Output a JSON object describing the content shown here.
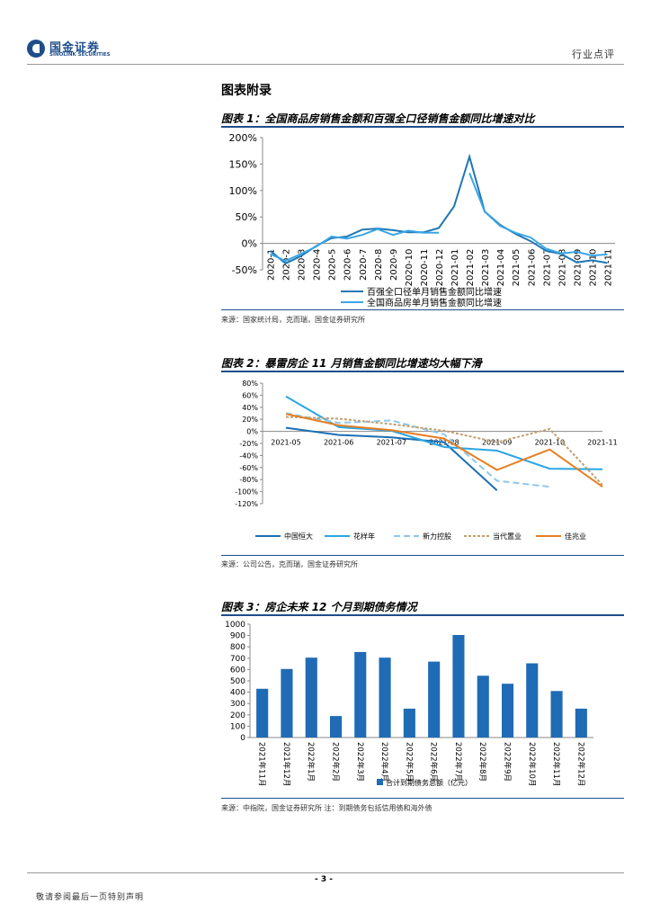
{
  "header": {
    "logo_cn": "国金证券",
    "logo_en": "SINOLINK SECURITIES",
    "category": "行业点评"
  },
  "appendix_title": "图表附录",
  "figures": [
    {
      "title": "图表 1：全国商品房销售金额和百强全口径销售金额同比增速对比",
      "source": "来源：国家统计局，克而瑞，国金证券研究所"
    },
    {
      "title": "图表 2：暴雷房企 11 月销售金额同比增速均大幅下滑",
      "source": "来源：公司公告，克而瑞，国金证券研究所"
    },
    {
      "title": "图表 3：房企未来 12 个月到期债务情况",
      "source": "来源：中指院，国金证券研究所 注：到期债务包括信用债和海外债"
    }
  ],
  "footer": {
    "page": "- 3 -",
    "note": "敬请参阅最后一页特别声明"
  },
  "chart_data": [
    {
      "type": "line",
      "title": "全国商品房销售金额和百强全口径销售金额同比增速对比",
      "categories": [
        "2020-1",
        "2020-2",
        "2020-3",
        "2020-4",
        "2020-5",
        "2020-6",
        "2020-7",
        "2020-8",
        "2020-9",
        "2020-10",
        "2020-11",
        "2020-12",
        "2021-01",
        "2021-02",
        "2021-03",
        "2021-04",
        "2021-05",
        "2021-06",
        "2021-07",
        "2021-08",
        "2021-09",
        "2021-10",
        "2021-11"
      ],
      "y_ticks": [
        "200%",
        "150%",
        "100%",
        "50%",
        "0%",
        "-50%"
      ],
      "ylim": [
        -50,
        200
      ],
      "series": [
        {
          "name": "百强全口径单月销售金额同比增速",
          "color": "#1f77b4",
          "values": [
            -14,
            -38,
            -24,
            -5,
            10,
            13,
            26,
            28,
            25,
            21,
            21,
            29,
            70,
            164,
            60,
            35,
            18,
            4,
            -14,
            -20,
            -36,
            -32,
            -37
          ]
        },
        {
          "name": "全国商品房单月销售金额同比增速",
          "color": "#3aa6e6",
          "values": [
            -20,
            -33,
            -20,
            -6,
            13,
            9,
            16,
            27,
            16,
            24,
            20,
            20,
            null,
            133,
            60,
            33,
            20,
            11,
            -10,
            -19,
            -16,
            -23,
            -21
          ]
        }
      ]
    },
    {
      "type": "line",
      "title": "暴雷房企 11 月销售金额同比增速均大幅下滑",
      "categories": [
        "2021-05",
        "2021-06",
        "2021-07",
        "2021-08",
        "2021-09",
        "2021-10",
        "2021-11"
      ],
      "y_ticks": [
        "80%",
        "60%",
        "40%",
        "20%",
        "0%",
        "-20%",
        "-40%",
        "-60%",
        "-80%",
        "-100%",
        "-120%"
      ],
      "ylim": [
        -120,
        80
      ],
      "series": [
        {
          "name": "中国恒大",
          "color": "#1a6fb5",
          "dash": "solid",
          "values": [
            6,
            -6,
            -10,
            -18,
            -98,
            null,
            null
          ]
        },
        {
          "name": "花样年",
          "color": "#2aa5e3",
          "dash": "solid",
          "values": [
            58,
            7,
            1,
            -26,
            -32,
            -62,
            -63
          ]
        },
        {
          "name": "新力控股",
          "color": "#8cc8ec",
          "dash": "long",
          "values": [
            30,
            14,
            18,
            -5,
            -82,
            -92,
            null
          ]
        },
        {
          "name": "当代置业",
          "color": "#c0a070",
          "dash": "short",
          "values": [
            24,
            21,
            12,
            1,
            -18,
            4,
            -89
          ]
        },
        {
          "name": "佳兆业",
          "color": "#e67e22",
          "dash": "solid",
          "values": [
            29,
            10,
            2,
            -12,
            -64,
            -30,
            -92
          ]
        }
      ]
    },
    {
      "type": "bar",
      "title": "房企未来 12 个月到期债务情况",
      "categories": [
        "2021年11月",
        "2021年12月",
        "2022年1月",
        "2022年2月",
        "2022年3月",
        "2022年4月",
        "2022年5月",
        "2022年6月",
        "2022年7月",
        "2022年8月",
        "2022年9月",
        "2022年10月",
        "2022年11月",
        "2022年12月"
      ],
      "y_ticks": [
        "1000",
        "900",
        "800",
        "700",
        "600",
        "500",
        "400",
        "300",
        "200",
        "100",
        "0"
      ],
      "ylim": [
        0,
        1000
      ],
      "series": [
        {
          "name": "合计到期债务总额（亿元）",
          "color": "#1f6bb5",
          "values": [
            430,
            605,
            705,
            190,
            755,
            705,
            255,
            670,
            905,
            545,
            475,
            655,
            410,
            255
          ]
        }
      ]
    }
  ]
}
